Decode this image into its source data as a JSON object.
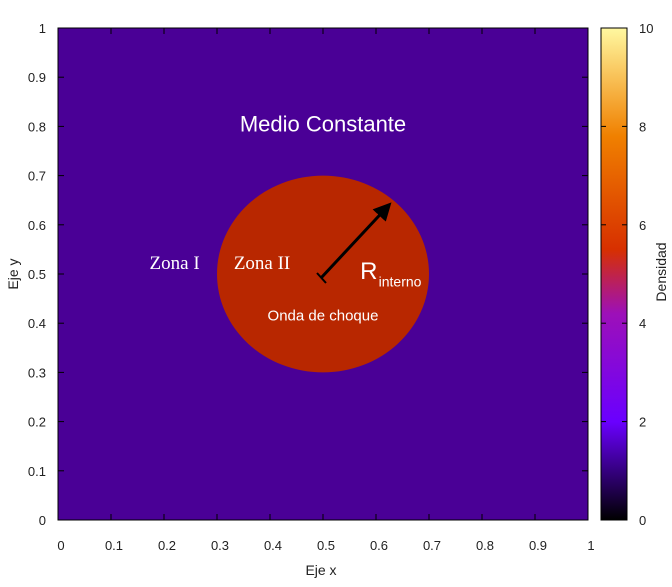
{
  "chart_data": {
    "type": "heatmap",
    "title": "",
    "xlabel": "Eje x",
    "ylabel": "Eje y",
    "xlim": [
      0,
      1
    ],
    "ylim": [
      0,
      1
    ],
    "x_ticks": [
      "0",
      "0.1",
      "0.2",
      "0.3",
      "0.4",
      "0.5",
      "0.6",
      "0.7",
      "0.8",
      "0.9",
      "1"
    ],
    "y_ticks": [
      "0",
      "0.1",
      "0.2",
      "0.3",
      "0.4",
      "0.5",
      "0.6",
      "0.7",
      "0.8",
      "0.9",
      "1"
    ],
    "background_region": {
      "label": "Medio Constante",
      "zone": "Zona I",
      "density": 2.5,
      "color": "#4a0096"
    },
    "circle_region": {
      "center": [
        0.5,
        0.5
      ],
      "radius": 0.2,
      "zone": "Zona II",
      "label": "Onda de choque",
      "density": 5.6,
      "color": "#b82700"
    },
    "radius_label": {
      "main": "R",
      "sub": "interno"
    },
    "colorbar": {
      "label": "Densidad",
      "range": [
        0,
        10
      ],
      "ticks": [
        "0",
        "2",
        "4",
        "6",
        "8",
        "10"
      ],
      "colormap": [
        "#000000",
        "#6a00ff",
        "#9d10b8",
        "#d73000",
        "#f08000",
        "#fff8a0"
      ]
    }
  }
}
